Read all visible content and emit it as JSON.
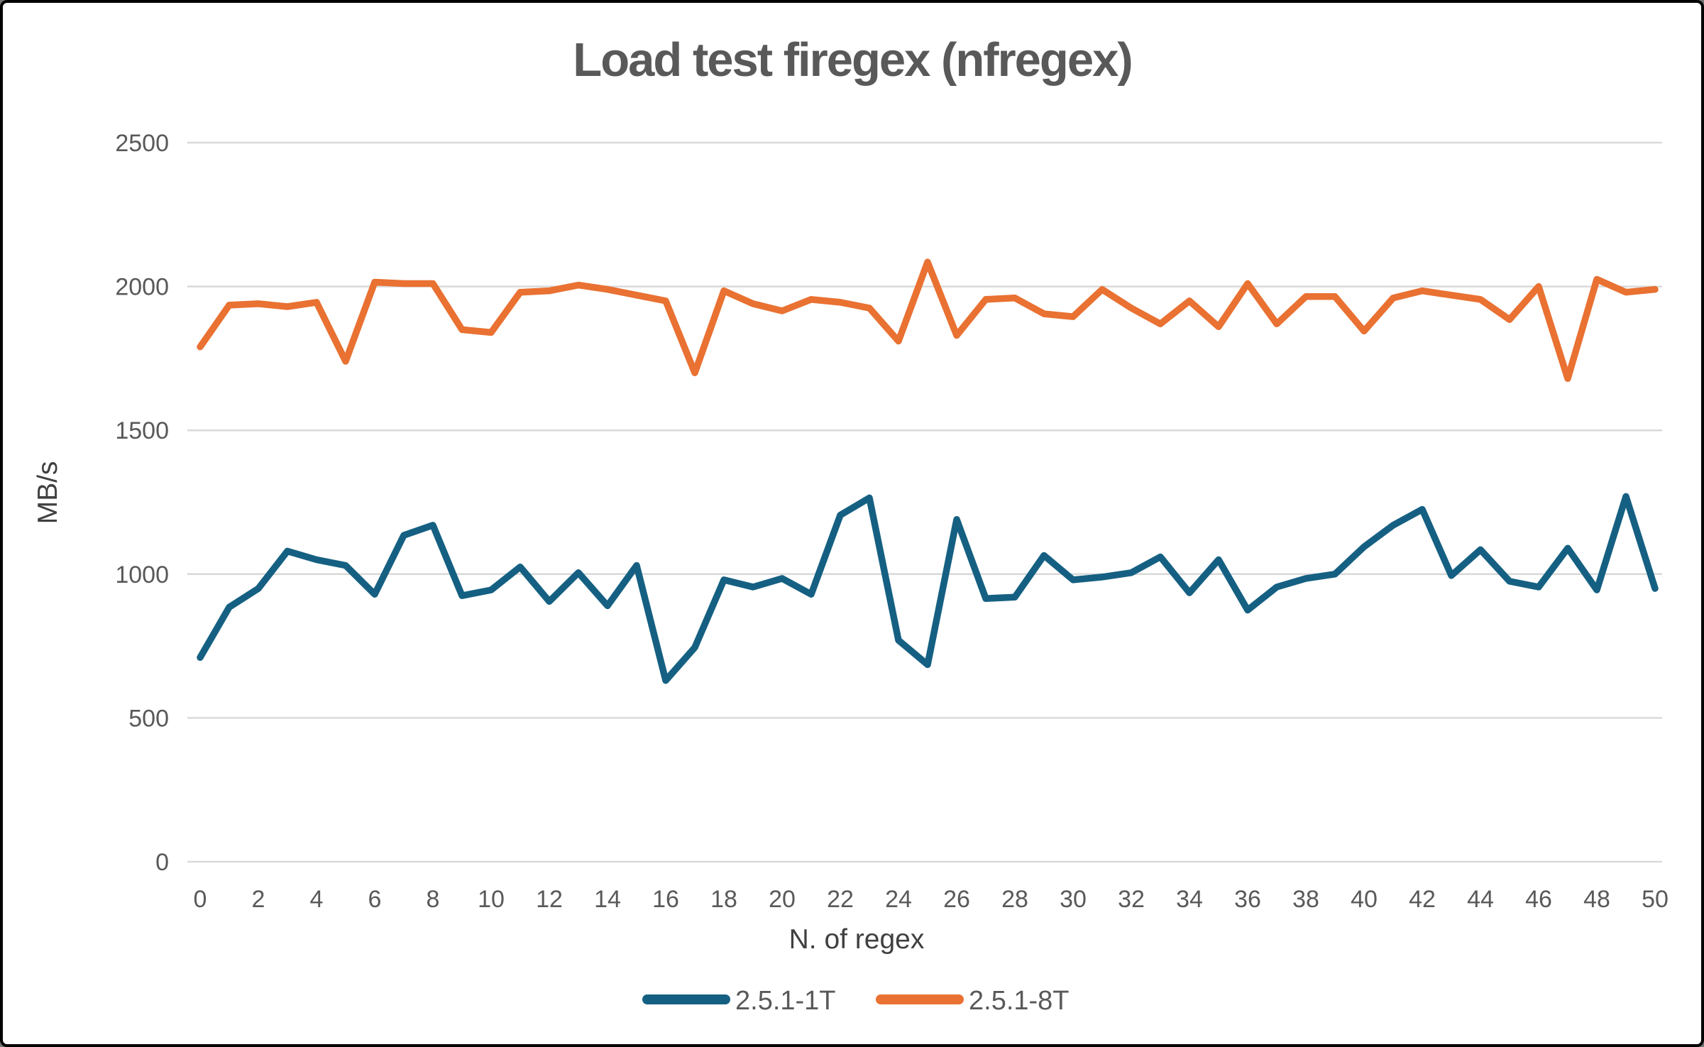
{
  "chart_data": {
    "type": "line",
    "title": "Load test firegex (nfregex)",
    "xlabel": "N. of regex",
    "ylabel": "MB/s",
    "x": [
      0,
      1,
      2,
      3,
      4,
      5,
      6,
      7,
      8,
      9,
      10,
      11,
      12,
      13,
      14,
      15,
      16,
      17,
      18,
      19,
      20,
      21,
      22,
      23,
      24,
      25,
      26,
      27,
      28,
      29,
      30,
      31,
      32,
      33,
      34,
      35,
      36,
      37,
      38,
      39,
      40,
      41,
      42,
      43,
      44,
      45,
      46,
      47,
      48,
      49,
      50
    ],
    "x_tick_labels": [
      "0",
      "2",
      "4",
      "6",
      "8",
      "10",
      "12",
      "14",
      "16",
      "18",
      "20",
      "22",
      "24",
      "26",
      "28",
      "30",
      "32",
      "34",
      "36",
      "38",
      "40",
      "42",
      "44",
      "46",
      "48",
      "50"
    ],
    "y_ticks": [
      "0",
      "500",
      "1000",
      "1500",
      "2000",
      "2500"
    ],
    "ylim": [
      0,
      2500
    ],
    "xlim": [
      0,
      50
    ],
    "grid": "horizontal",
    "legend_position": "bottom-center",
    "series": [
      {
        "name": "2.5.1-1T",
        "color": "#156082",
        "values": [
          710,
          885,
          950,
          1080,
          1050,
          1030,
          930,
          1135,
          1170,
          925,
          945,
          1025,
          905,
          1005,
          890,
          1030,
          630,
          745,
          980,
          955,
          985,
          930,
          1205,
          1265,
          770,
          685,
          1190,
          915,
          920,
          1065,
          980,
          990,
          1005,
          1060,
          935,
          1050,
          875,
          955,
          985,
          1000,
          1095,
          1170,
          1225,
          995,
          1085,
          975,
          955,
          1090,
          945,
          1270,
          950
        ]
      },
      {
        "name": "2.5.1-8T",
        "color": "#E97132",
        "values": [
          1790,
          1935,
          1940,
          1930,
          1945,
          1740,
          2015,
          2010,
          2010,
          1850,
          1840,
          1980,
          1985,
          2005,
          1990,
          1970,
          1950,
          1700,
          1985,
          1940,
          1915,
          1955,
          1945,
          1925,
          1810,
          2085,
          1830,
          1955,
          1960,
          1905,
          1895,
          1990,
          1925,
          1870,
          1950,
          1860,
          2010,
          1870,
          1965,
          1965,
          1845,
          1960,
          1985,
          1970,
          1955,
          1885,
          2000,
          1680,
          2025,
          1980,
          1990
        ]
      }
    ],
    "colors": {
      "title_text": "#595959",
      "tick_text": "#595959",
      "axis_title_text": "#404040",
      "gridline": "#D9D9D9",
      "background": "#ffffff",
      "frame_border": "#000000"
    }
  }
}
